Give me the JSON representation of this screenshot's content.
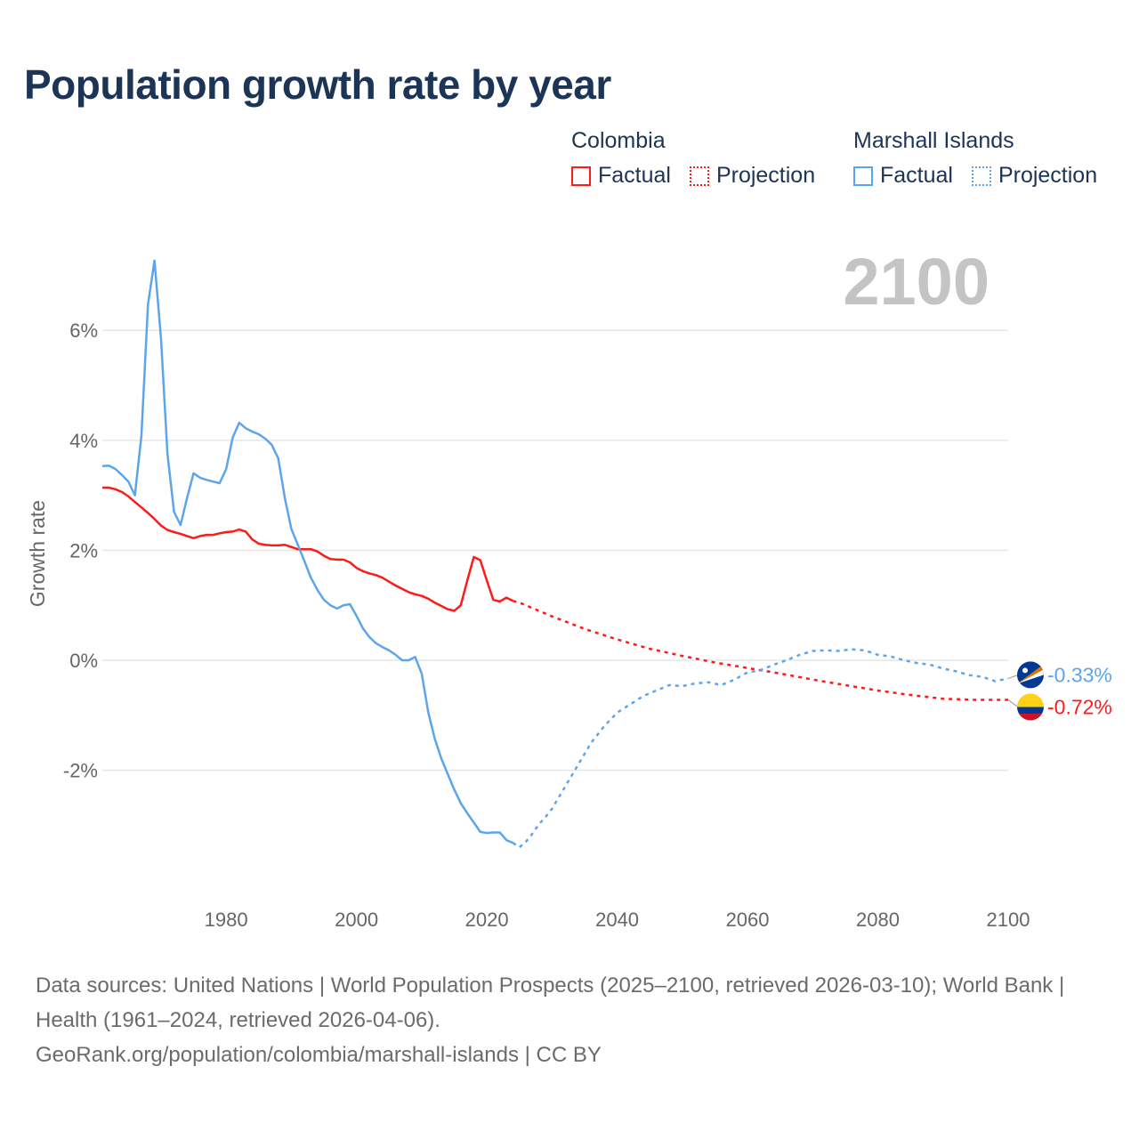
{
  "chart_data": {
    "type": "line",
    "title": "Population growth rate by year",
    "ylabel": "Growth rate",
    "xlabel": "",
    "xlim": [
      1961,
      2100
    ],
    "ylim": [
      -4.2,
      7.8
    ],
    "x_ticks": [
      1980,
      2000,
      2020,
      2040,
      2060,
      2080,
      2100
    ],
    "y_ticks": [
      -2,
      0,
      2,
      4,
      6
    ],
    "y_tick_labels": [
      "-2%",
      "0%",
      "2%",
      "4%",
      "6%"
    ],
    "year_watermark": "2100",
    "legend_placement": "top-right",
    "series": [
      {
        "name": "Colombia",
        "color": "#ff1a1a",
        "factual_label": "Factual",
        "projection_label": "Projection",
        "end_label": "-0.72%",
        "factual": {
          "x": [
            1961,
            1962,
            1963,
            1964,
            1965,
            1966,
            1967,
            1968,
            1969,
            1970,
            1971,
            1972,
            1973,
            1974,
            1975,
            1976,
            1977,
            1978,
            1979,
            1980,
            1981,
            1982,
            1983,
            1984,
            1985,
            1986,
            1987,
            1988,
            1989,
            1990,
            1991,
            1992,
            1993,
            1994,
            1995,
            1996,
            1997,
            1998,
            1999,
            2000,
            2001,
            2002,
            2003,
            2004,
            2005,
            2006,
            2007,
            2008,
            2009,
            2010,
            2011,
            2012,
            2013,
            2014,
            2015,
            2016,
            2017,
            2018,
            2019,
            2020,
            2021,
            2022,
            2023,
            2024
          ],
          "y": [
            3.14,
            3.14,
            3.11,
            3.06,
            2.98,
            2.88,
            2.78,
            2.68,
            2.57,
            2.45,
            2.37,
            2.33,
            2.3,
            2.26,
            2.22,
            2.26,
            2.28,
            2.28,
            2.31,
            2.33,
            2.34,
            2.38,
            2.34,
            2.2,
            2.12,
            2.1,
            2.09,
            2.09,
            2.1,
            2.06,
            2.02,
            2.02,
            2.02,
            1.98,
            1.9,
            1.84,
            1.83,
            1.83,
            1.78,
            1.68,
            1.62,
            1.58,
            1.55,
            1.5,
            1.43,
            1.36,
            1.3,
            1.24,
            1.2,
            1.17,
            1.12,
            1.05,
            0.99,
            0.93,
            0.9,
            1.0,
            1.45,
            1.88,
            1.82,
            1.45,
            1.1,
            1.07,
            1.14,
            1.08
          ]
        },
        "projection": {
          "x": [
            2024,
            2025,
            2030,
            2035,
            2040,
            2045,
            2050,
            2055,
            2060,
            2065,
            2070,
            2075,
            2080,
            2085,
            2090,
            2095,
            2100
          ],
          "y": [
            1.08,
            1.05,
            0.8,
            0.57,
            0.38,
            0.21,
            0.08,
            -0.04,
            -0.14,
            -0.24,
            -0.35,
            -0.45,
            -0.55,
            -0.63,
            -0.7,
            -0.72,
            -0.72
          ]
        }
      },
      {
        "name": "Marshall Islands",
        "color": "#5da5ea",
        "factual_label": "Factual",
        "projection_label": "Projection",
        "end_label": "-0.33%",
        "factual": {
          "x": [
            1961,
            1962,
            1963,
            1964,
            1965,
            1966,
            1967,
            1968,
            1969,
            1970,
            1971,
            1972,
            1973,
            1974,
            1975,
            1976,
            1977,
            1978,
            1979,
            1980,
            1981,
            1982,
            1983,
            1984,
            1985,
            1986,
            1987,
            1988,
            1989,
            1990,
            1991,
            1992,
            1993,
            1994,
            1995,
            1996,
            1997,
            1998,
            1999,
            2000,
            2001,
            2002,
            2003,
            2004,
            2005,
            2006,
            2007,
            2008,
            2009,
            2010,
            2011,
            2012,
            2013,
            2014,
            2015,
            2016,
            2017,
            2018,
            2019,
            2020,
            2021,
            2022,
            2023,
            2024
          ],
          "y": [
            3.53,
            3.54,
            3.48,
            3.37,
            3.25,
            3.0,
            4.08,
            6.47,
            7.27,
            5.86,
            3.75,
            2.7,
            2.46,
            2.95,
            3.4,
            3.32,
            3.28,
            3.25,
            3.22,
            3.48,
            4.05,
            4.32,
            4.22,
            4.16,
            4.11,
            4.03,
            3.92,
            3.67,
            2.95,
            2.39,
            2.1,
            1.81,
            1.5,
            1.28,
            1.1,
            1.0,
            0.94,
            1.0,
            1.02,
            0.81,
            0.58,
            0.42,
            0.31,
            0.24,
            0.18,
            0.1,
            0.0,
            0.0,
            0.06,
            -0.24,
            -0.94,
            -1.42,
            -1.78,
            -2.07,
            -2.35,
            -2.6,
            -2.78,
            -2.95,
            -3.12,
            -3.14,
            -3.13,
            -3.13,
            -3.27,
            -3.32
          ]
        },
        "projection": {
          "x": [
            2024,
            2025,
            2026,
            2027,
            2028,
            2029,
            2030,
            2032,
            2034,
            2036,
            2038,
            2040,
            2042,
            2044,
            2046,
            2048,
            2050,
            2052,
            2054,
            2056,
            2058,
            2060,
            2062,
            2064,
            2066,
            2068,
            2070,
            2072,
            2074,
            2076,
            2078,
            2080,
            2082,
            2084,
            2086,
            2088,
            2090,
            2092,
            2094,
            2096,
            2098,
            2100
          ],
          "y": [
            -3.32,
            -3.4,
            -3.3,
            -3.15,
            -2.98,
            -2.85,
            -2.7,
            -2.3,
            -1.9,
            -1.5,
            -1.2,
            -0.95,
            -0.8,
            -0.65,
            -0.55,
            -0.45,
            -0.47,
            -0.42,
            -0.4,
            -0.45,
            -0.35,
            -0.22,
            -0.18,
            -0.08,
            0.0,
            0.1,
            0.17,
            0.18,
            0.17,
            0.2,
            0.18,
            0.1,
            0.07,
            0.0,
            -0.05,
            -0.08,
            -0.15,
            -0.2,
            -0.27,
            -0.3,
            -0.38,
            -0.33
          ]
        }
      }
    ]
  },
  "footer": {
    "sources": "Data sources: United Nations | World Population Prospects (2025–2100, retrieved 2026-03-10); World Bank | Health (1961–2024, retrieved 2026-04-06).",
    "credit": "GeoRank.org/population/colombia/marshall-islands | CC BY"
  }
}
